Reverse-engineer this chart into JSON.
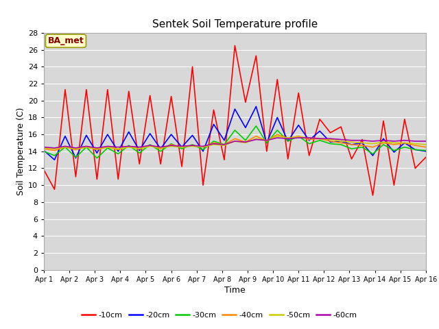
{
  "title": "Sentek Soil Temperature profile",
  "xlabel": "Time",
  "ylabel": "Soil Temperature (C)",
  "annotation": "BA_met",
  "ylim": [
    0,
    28
  ],
  "yticks": [
    0,
    2,
    4,
    6,
    8,
    10,
    12,
    14,
    16,
    18,
    20,
    22,
    24,
    26,
    28
  ],
  "xlim": [
    0,
    15
  ],
  "xtick_labels": [
    "Apr 1",
    "Apr 2",
    "Apr 3",
    "Apr 4",
    "Apr 5",
    "Apr 6",
    "Apr 7",
    "Apr 8",
    "Apr 9",
    "Apr 10",
    "Apr 11",
    "Apr 12",
    "Apr 13",
    "Apr 14",
    "Apr 15",
    "Apr 16"
  ],
  "bg_color": "#e8e8e8",
  "plot_bg_color": "#d8d8d8",
  "grid_color": "white",
  "series": {
    "-10cm": {
      "color": "#ff0000",
      "lw": 1.2,
      "values": [
        11.8,
        9.5,
        21.3,
        11.0,
        21.3,
        10.7,
        21.3,
        10.7,
        21.1,
        12.5,
        20.6,
        12.5,
        20.5,
        12.2,
        24.0,
        10.0,
        18.9,
        13.0,
        26.5,
        19.8,
        25.3,
        14.0,
        22.5,
        13.1,
        20.9,
        13.5,
        17.8,
        16.2,
        16.9,
        13.1,
        15.4,
        8.8,
        17.6,
        10.0,
        17.8,
        12.0,
        13.3
      ]
    },
    "-20cm": {
      "color": "#0000ff",
      "lw": 1.2,
      "values": [
        14.1,
        13.0,
        15.8,
        13.2,
        15.9,
        13.8,
        16.0,
        14.0,
        16.3,
        14.1,
        16.1,
        14.3,
        16.0,
        14.5,
        15.9,
        14.0,
        17.2,
        15.3,
        19.0,
        16.8,
        19.3,
        15.0,
        18.0,
        15.2,
        17.1,
        15.3,
        16.4,
        15.1,
        15.2,
        14.8,
        15.0,
        13.5,
        15.5,
        13.9,
        15.0,
        14.2,
        14.0
      ]
    },
    "-30cm": {
      "color": "#00cc00",
      "lw": 1.2,
      "values": [
        14.0,
        13.5,
        14.5,
        13.3,
        14.5,
        13.2,
        14.4,
        13.7,
        14.7,
        13.8,
        14.8,
        14.0,
        14.9,
        14.3,
        14.8,
        14.2,
        15.2,
        14.8,
        16.5,
        15.3,
        17.0,
        15.0,
        16.5,
        15.2,
        15.8,
        14.9,
        15.3,
        14.9,
        14.8,
        14.3,
        14.5,
        13.7,
        14.8,
        14.1,
        14.5,
        14.2,
        14.1
      ]
    },
    "-40cm": {
      "color": "#ff8800",
      "lw": 1.2,
      "values": [
        14.3,
        14.1,
        14.5,
        14.2,
        14.5,
        14.2,
        14.5,
        14.2,
        14.6,
        14.3,
        14.7,
        14.3,
        14.8,
        14.5,
        14.7,
        14.5,
        15.0,
        14.8,
        15.5,
        15.1,
        15.8,
        15.2,
        16.0,
        15.5,
        15.8,
        15.4,
        15.5,
        15.2,
        15.0,
        14.8,
        14.7,
        14.5,
        15.0,
        14.8,
        15.0,
        14.7,
        14.5
      ]
    },
    "-50cm": {
      "color": "#cccc00",
      "lw": 1.2,
      "values": [
        14.4,
        14.3,
        14.5,
        14.3,
        14.5,
        14.3,
        14.5,
        14.3,
        14.5,
        14.3,
        14.6,
        14.4,
        14.6,
        14.5,
        14.6,
        14.5,
        14.8,
        14.7,
        15.2,
        15.0,
        15.5,
        15.3,
        15.8,
        15.6,
        15.7,
        15.6,
        15.5,
        15.4,
        15.2,
        15.1,
        15.0,
        14.9,
        15.1,
        15.0,
        15.0,
        14.9,
        14.8
      ]
    },
    "-60cm": {
      "color": "#aa00aa",
      "lw": 1.2,
      "values": [
        14.5,
        14.4,
        14.6,
        14.4,
        14.6,
        14.4,
        14.6,
        14.5,
        14.6,
        14.5,
        14.7,
        14.5,
        14.7,
        14.6,
        14.7,
        14.6,
        14.9,
        14.8,
        15.2,
        15.1,
        15.4,
        15.3,
        15.6,
        15.5,
        15.6,
        15.6,
        15.5,
        15.5,
        15.4,
        15.3,
        15.3,
        15.2,
        15.3,
        15.2,
        15.3,
        15.2,
        15.2
      ]
    }
  },
  "legend_labels": [
    "-10cm",
    "-20cm",
    "-30cm",
    "-40cm",
    "-50cm",
    "-60cm"
  ],
  "legend_colors": [
    "#ff0000",
    "#0000ff",
    "#00cc00",
    "#ff8800",
    "#cccc00",
    "#aa00aa"
  ]
}
